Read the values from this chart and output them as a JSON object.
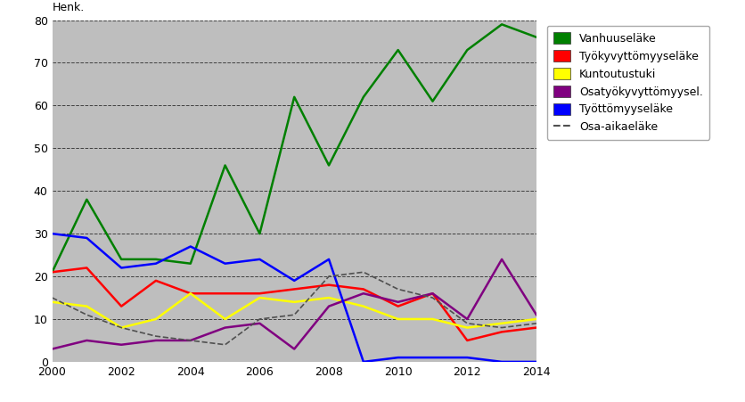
{
  "years": [
    2000,
    2001,
    2002,
    2003,
    2004,
    2005,
    2006,
    2007,
    2008,
    2009,
    2010,
    2011,
    2012,
    2013,
    2014
  ],
  "vanhuuselake": [
    21,
    38,
    24,
    24,
    23,
    46,
    30,
    62,
    46,
    62,
    73,
    61,
    73,
    79,
    76
  ],
  "tyokyvyttomyyselake": [
    21,
    22,
    13,
    19,
    16,
    16,
    16,
    17,
    18,
    17,
    13,
    16,
    5,
    7,
    8
  ],
  "kuntoutustuki": [
    14,
    13,
    8,
    10,
    16,
    10,
    15,
    14,
    15,
    13,
    10,
    10,
    8,
    9,
    10
  ],
  "osatyokyvyttomyyselake": [
    3,
    5,
    4,
    5,
    5,
    8,
    9,
    3,
    13,
    16,
    14,
    16,
    10,
    24,
    11
  ],
  "tyottomyyselake": [
    30,
    29,
    22,
    23,
    27,
    23,
    24,
    19,
    24,
    0,
    1,
    1,
    1,
    0,
    0
  ],
  "osa_aikael": [
    15,
    11,
    8,
    6,
    5,
    4,
    10,
    11,
    20,
    21,
    17,
    15,
    9,
    8,
    9
  ],
  "series_colors": {
    "vanhuuselake": "#008000",
    "tyokyvyttomyyselake": "#ff0000",
    "kuntoutustuki": "#ffff00",
    "osatyokyvyttomyyselake": "#800080",
    "tyottomyyselake": "#0000ff",
    "osa_aikael": "#505050"
  },
  "series_labels": {
    "vanhuuselake": "Vanhuuseläke",
    "tyokyvyttomyyselake": "Työkyvyttömyyseläke",
    "kuntoutustuki": "Kuntoutustuki",
    "osatyokyvyttomyyselake": "Osatyökyvyttömyysel.",
    "tyottomyyselake": "Työttömyyseläke",
    "osa_aikael": "Osa-aikaeläke"
  },
  "ylabel": "Henk.",
  "ylim": [
    0,
    80
  ],
  "yticks": [
    0,
    10,
    20,
    30,
    40,
    50,
    60,
    70,
    80
  ],
  "xlim": [
    2000,
    2014
  ],
  "xticks": [
    2000,
    2002,
    2004,
    2006,
    2008,
    2010,
    2012,
    2014
  ],
  "plot_bg_color": "#bebebe",
  "fig_bg_color": "#ffffff",
  "grid_color": "#404040",
  "figsize": [
    8.36,
    4.51
  ],
  "dpi": 100
}
